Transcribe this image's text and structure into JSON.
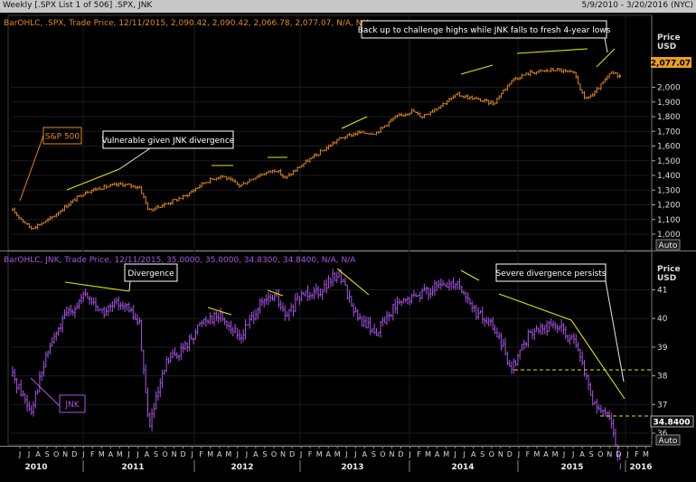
{
  "window": {
    "title": "Weekly [.SPX List 1 of 506] .SPX, JNK",
    "date_range": "5/9/2010 - 3/20/2016 (NYC)"
  },
  "panels": {
    "spx": {
      "legend": "BarOHLC, .SPX, Trade Price,  12/11/2015, 2,090.42, 2,090.42, 2,066.78, 2,077.07, N/A, N/A",
      "unit_title": "Price",
      "unit": "USD",
      "last_label": "2,077.07",
      "auto_label": "Auto",
      "name_box": "S&P 500",
      "color": "#e08a1e",
      "tick_labels": [
        "1,000",
        "1,100",
        "1,200",
        "1,300",
        "1,400",
        "1,500",
        "1,600",
        "1,700",
        "1,800",
        "1,900",
        "2,000"
      ]
    },
    "jnk": {
      "legend": "BarOHLC, JNK, Trade Price,  12/11/2015, 35.0000, 35.0000, 34.8300, 34.8400, N/A, N/A",
      "unit_title": "Price",
      "unit": "USD",
      "last_label": "34.8400",
      "auto_label": "Auto",
      "name_box": "JNK",
      "color": "#a855e6",
      "tick_labels": [
        "36",
        "37",
        "38",
        "39",
        "40",
        "41"
      ]
    }
  },
  "annotations": {
    "vulnerable": "Vulnerable given JNK divergence",
    "highs": "Back up to challenge highs while JNK falls to fresh 4-year lows",
    "divergence": "Divergence",
    "severe": "Severe divergence persists"
  },
  "x_axis": {
    "month_labels": [
      "J",
      "J",
      "A",
      "S",
      "O",
      "N",
      "D",
      "J",
      "F",
      "M",
      "A",
      "M",
      "J",
      "J",
      "A",
      "S",
      "O",
      "N",
      "D",
      "J",
      "F",
      "M",
      "A",
      "M",
      "J",
      "J",
      "A",
      "S",
      "O",
      "N",
      "D",
      "J",
      "F",
      "M",
      "A",
      "M",
      "J",
      "J",
      "A",
      "S",
      "O",
      "N",
      "D",
      "J",
      "F",
      "M",
      "A",
      "M",
      "J",
      "J",
      "A",
      "S",
      "O",
      "N",
      "D",
      "J",
      "F",
      "M",
      "A",
      "M",
      "J",
      "J",
      "A",
      "S",
      "O",
      "N",
      "D",
      "J",
      "F",
      "M"
    ],
    "year_labels": [
      "2010",
      "2011",
      "2012",
      "2013",
      "2014",
      "2015",
      "2016"
    ]
  },
  "chart_data": [
    {
      "type": "line",
      "representation": "weekly OHLC bars",
      "series_label": ".SPX",
      "ylabel": "Price USD",
      "ylim": [
        960,
        2140
      ],
      "x": [
        "2010-05",
        "2010-07",
        "2010-09",
        "2010-11",
        "2011-01",
        "2011-03",
        "2011-05",
        "2011-07",
        "2011-08",
        "2011-10",
        "2011-12",
        "2012-02",
        "2012-04",
        "2012-06",
        "2012-08",
        "2012-10",
        "2012-11",
        "2013-01",
        "2013-03",
        "2013-05",
        "2013-07",
        "2013-09",
        "2013-11",
        "2014-01",
        "2014-02",
        "2014-04",
        "2014-06",
        "2014-08",
        "2014-10",
        "2014-12",
        "2015-02",
        "2015-05",
        "2015-07",
        "2015-08",
        "2015-09",
        "2015-11",
        "2015-12"
      ],
      "values": [
        1160,
        1040,
        1100,
        1200,
        1290,
        1320,
        1340,
        1320,
        1160,
        1210,
        1260,
        1350,
        1400,
        1330,
        1400,
        1440,
        1380,
        1480,
        1560,
        1650,
        1690,
        1690,
        1790,
        1840,
        1800,
        1870,
        1950,
        1920,
        1890,
        2050,
        2100,
        2120,
        2090,
        1920,
        1950,
        2100,
        2077
      ]
    },
    {
      "type": "line",
      "representation": "weekly OHLC bars",
      "series_label": "JNK",
      "ylabel": "Price USD",
      "ylim": [
        34.4,
        42.2
      ],
      "x": [
        "2010-05",
        "2010-07",
        "2010-09",
        "2010-11",
        "2011-01",
        "2011-03",
        "2011-05",
        "2011-07",
        "2011-08",
        "2011-10",
        "2011-12",
        "2012-02",
        "2012-04",
        "2012-06",
        "2012-08",
        "2012-10",
        "2012-11",
        "2013-01",
        "2013-03",
        "2013-05",
        "2013-07",
        "2013-09",
        "2013-11",
        "2014-01",
        "2014-02",
        "2014-04",
        "2014-06",
        "2014-08",
        "2014-10",
        "2014-12",
        "2015-02",
        "2015-05",
        "2015-07",
        "2015-08",
        "2015-09",
        "2015-11",
        "2015-12"
      ],
      "values": [
        38.0,
        36.8,
        39.0,
        40.2,
        40.8,
        40.2,
        40.6,
        39.8,
        36.2,
        38.5,
        39.0,
        40.0,
        40.1,
        39.3,
        40.4,
        40.8,
        40.0,
        40.9,
        41.0,
        41.6,
        40.0,
        39.5,
        40.4,
        40.7,
        40.9,
        41.1,
        41.3,
        40.2,
        39.7,
        38.3,
        39.5,
        39.8,
        39.1,
        38.2,
        37.0,
        36.4,
        34.84
      ],
      "last": 34.84
    }
  ]
}
